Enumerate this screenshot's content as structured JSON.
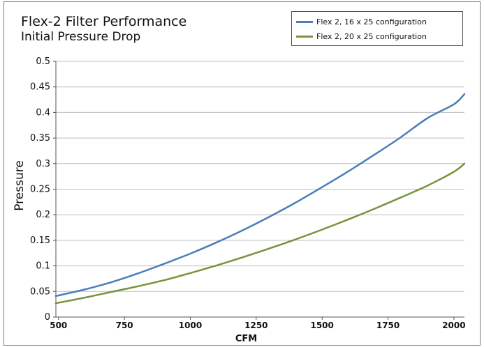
{
  "chart_data": {
    "type": "line",
    "title": "Flex-2 Filter Performance",
    "subtitle": "Initial Pressure Drop",
    "xlabel": "CFM",
    "ylabel": "Pressure",
    "xlim": [
      490,
      2040
    ],
    "ylim": [
      0,
      0.5
    ],
    "x_ticks": [
      500,
      750,
      1000,
      1250,
      1500,
      1750,
      2000
    ],
    "x_tick_labels": [
      "500",
      "750",
      "1000",
      "1250",
      "1500",
      "1750",
      "2000"
    ],
    "y_ticks": [
      0,
      0.05,
      0.1,
      0.15,
      0.2,
      0.25,
      0.3,
      0.35,
      0.4,
      0.45,
      0.5
    ],
    "y_tick_labels": [
      "0",
      "0.05",
      "0.1",
      "0.15",
      "0.2",
      "0.25",
      "0.3",
      "0.35",
      "0.4",
      "0.45",
      "0.5"
    ],
    "grid": "horizontal",
    "legend_position": "top-right",
    "series": [
      {
        "name": "Flex 2, 16 x 25 configuration",
        "color": "#4a7ebb",
        "x": [
          490,
          600,
          700,
          800,
          900,
          1000,
          1100,
          1200,
          1300,
          1400,
          1500,
          1600,
          1700,
          1800,
          1900,
          2000,
          2040
        ],
        "y": [
          0.041,
          0.054,
          0.068,
          0.085,
          0.104,
          0.124,
          0.146,
          0.17,
          0.196,
          0.224,
          0.254,
          0.285,
          0.318,
          0.352,
          0.389,
          0.416,
          0.436
        ]
      },
      {
        "name": "Flex 2, 20 x 25 configuration",
        "color": "#77933c",
        "x": [
          490,
          600,
          700,
          800,
          900,
          1000,
          1100,
          1200,
          1300,
          1400,
          1500,
          1600,
          1700,
          1800,
          1900,
          2000,
          2040
        ],
        "y": [
          0.027,
          0.038,
          0.049,
          0.06,
          0.072,
          0.086,
          0.101,
          0.117,
          0.134,
          0.152,
          0.171,
          0.191,
          0.212,
          0.234,
          0.257,
          0.284,
          0.3
        ]
      }
    ]
  }
}
